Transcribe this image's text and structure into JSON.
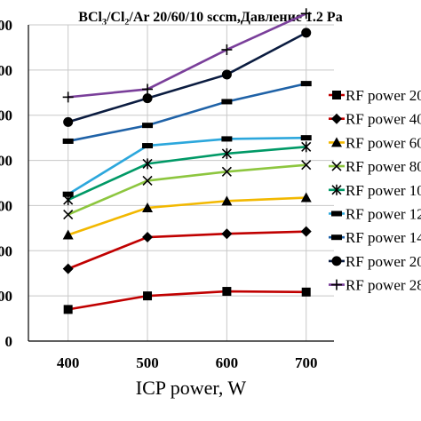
{
  "chart_data": {
    "type": "line",
    "title": "BCl3/Cl2/Ar 20/60/10 sccm, Давление 1.2 Pa",
    "title_parts": {
      "p1": "BCl",
      "s1": "3",
      "p2": "/Cl",
      "s2": "2",
      "p3": "/Ar 20/60/10 sccm,Давление 1.2 Pa"
    },
    "xlabel": "ICP power, W",
    "ylabel": "",
    "x": [
      400,
      500,
      600,
      700
    ],
    "x_tick_labels": [
      "400",
      "500",
      "600",
      "700"
    ],
    "y_tick_labels": [
      "00",
      "00",
      "00",
      "00",
      "00",
      "00",
      "00",
      "0"
    ],
    "ylim": [
      0,
      14
    ],
    "grid": true,
    "legend_position": "right",
    "series": [
      {
        "name": "RF power 20",
        "color": "#c00000",
        "marker": "square",
        "values": [
          1.4,
          2.0,
          2.2,
          2.17
        ]
      },
      {
        "name": "RF power 40",
        "color": "#c00000",
        "marker": "diamond",
        "values": [
          3.2,
          4.6,
          4.75,
          4.85
        ]
      },
      {
        "name": "RF power 60",
        "color": "#f2b800",
        "marker": "triangle",
        "values": [
          4.7,
          5.9,
          6.2,
          6.35
        ]
      },
      {
        "name": "RF power 80",
        "color": "#8dc63f",
        "marker": "x",
        "values": [
          5.6,
          7.1,
          7.5,
          7.8
        ]
      },
      {
        "name": "RF power 10",
        "color": "#009966",
        "marker": "asterisk",
        "values": [
          6.25,
          7.85,
          8.3,
          8.6
        ]
      },
      {
        "name": "RF power 12",
        "color": "#2ca7dc",
        "marker": "dash",
        "values": [
          6.5,
          8.65,
          8.95,
          9.0
        ]
      },
      {
        "name": "RF power 14",
        "color": "#1f62a7",
        "marker": "dash",
        "values": [
          8.85,
          9.55,
          10.6,
          11.4
        ]
      },
      {
        "name": "RF power 20",
        "color": "#0b1c40",
        "marker": "circle",
        "values": [
          9.7,
          10.75,
          11.8,
          13.65
        ]
      },
      {
        "name": "RF power 28",
        "color": "#7a3f9a",
        "marker": "plus",
        "values": [
          10.8,
          11.15,
          12.9,
          14.5
        ]
      }
    ]
  }
}
